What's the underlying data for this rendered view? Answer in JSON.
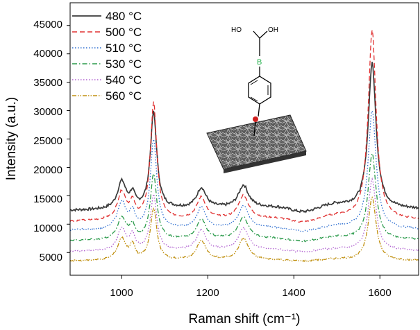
{
  "chart_data": {
    "type": "line",
    "title": "",
    "xlabel": "Raman shift (cm⁻¹)",
    "ylabel": "Intensity (a.u.)",
    "xlim": [
      880,
      1690
    ],
    "ylim": [
      1000,
      49000
    ],
    "xticks": [
      "1000",
      "1200",
      "1400",
      "1600"
    ],
    "yticks": [
      "5000",
      "10000",
      "15000",
      "20000",
      "25000",
      "30000",
      "35000",
      "40000",
      "45000"
    ],
    "peak_positions": [
      1000,
      1025,
      1074,
      1185,
      1283,
      1582
    ],
    "legend_position": "top-left",
    "series": [
      {
        "name": "480 °C",
        "color": "#3a3a3a",
        "dash": "solid",
        "baseline": 12400,
        "x": [
          1000,
          1025,
          1074,
          1185,
          1283,
          1582
        ],
        "peak_heights": [
          17200,
          14700,
          29300,
          15900,
          16300,
          38000
        ]
      },
      {
        "name": "500 °C",
        "color": "#e03030",
        "dash": "dash",
        "baseline": 10500,
        "x": [
          1000,
          1025,
          1074,
          1185,
          1283,
          1582
        ],
        "peak_heights": [
          15400,
          13100,
          31000,
          14300,
          14600,
          43800
        ]
      },
      {
        "name": "510 °C",
        "color": "#2f6fd0",
        "dash": "dot",
        "baseline": 8900,
        "x": [
          1000,
          1025,
          1074,
          1185,
          1283,
          1582
        ],
        "peak_heights": [
          13700,
          11600,
          24600,
          12600,
          12900,
          29800
        ]
      },
      {
        "name": "530 °C",
        "color": "#2a9a4a",
        "dash": "dashdot",
        "baseline": 7100,
        "x": [
          1000,
          1025,
          1074,
          1185,
          1283,
          1582
        ],
        "peak_heights": [
          11000,
          9400,
          18600,
          10600,
          10900,
          22200
        ]
      },
      {
        "name": "540 °C",
        "color": "#b060d0",
        "dash": "dot",
        "baseline": 5200,
        "x": [
          1000,
          1025,
          1074,
          1185,
          1283,
          1582
        ],
        "peak_heights": [
          9100,
          7600,
          14900,
          8800,
          9100,
          17700
        ]
      },
      {
        "name": "560 °C",
        "color": "#c09010",
        "dash": "dashdotdot",
        "baseline": 3500,
        "x": [
          1000,
          1025,
          1074,
          1185,
          1283,
          1582
        ],
        "peak_heights": [
          7300,
          5900,
          12600,
          6900,
          7300,
          14700
        ]
      }
    ],
    "molecule": {
      "oh_left": "HO",
      "oh_right": "OH",
      "atom_b": "B"
    }
  }
}
